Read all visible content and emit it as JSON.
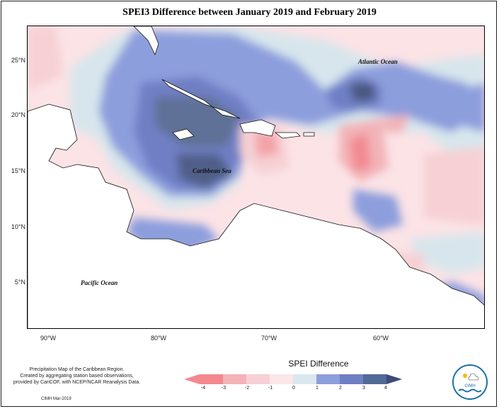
{
  "title": "SPEI3 Difference between January 2019 and February 2019",
  "axes": {
    "lat_labels": [
      "25°N",
      "20°N",
      "15°N",
      "10°N",
      "5°N"
    ],
    "lon_labels": [
      "90°W",
      "80°W",
      "70°W",
      "60°W"
    ]
  },
  "places": {
    "atlantic": "Atlantic Ocean",
    "caribbean": "Caribbean Sea",
    "pacific": "Pacific Ocean"
  },
  "legend": {
    "title": "SPEI Difference",
    "ticks": [
      "-4",
      "-3",
      "-2",
      "-1",
      "0",
      "1",
      "2",
      "3",
      "4"
    ],
    "colors": [
      "#f4888f",
      "#f3b3b8",
      "#f6d0d4",
      "#fbe6e8",
      "#d9e8ee",
      "#8d9edd",
      "#6f7fc4",
      "#526a96",
      "#3e4a7a"
    ]
  },
  "credit": {
    "line1": "Precipitation Map of the Caribbean Region.",
    "line2": "Created by aggregating station based observations,",
    "line3": "provided by CariCOF, with NCEP/NCAR Reanalysis Data.",
    "line4": "CIMH Mar-2019"
  },
  "logo_text": "CIMH",
  "logo_icons": [
    "sun-icon",
    "cloud-icon",
    "waves-icon"
  ]
}
